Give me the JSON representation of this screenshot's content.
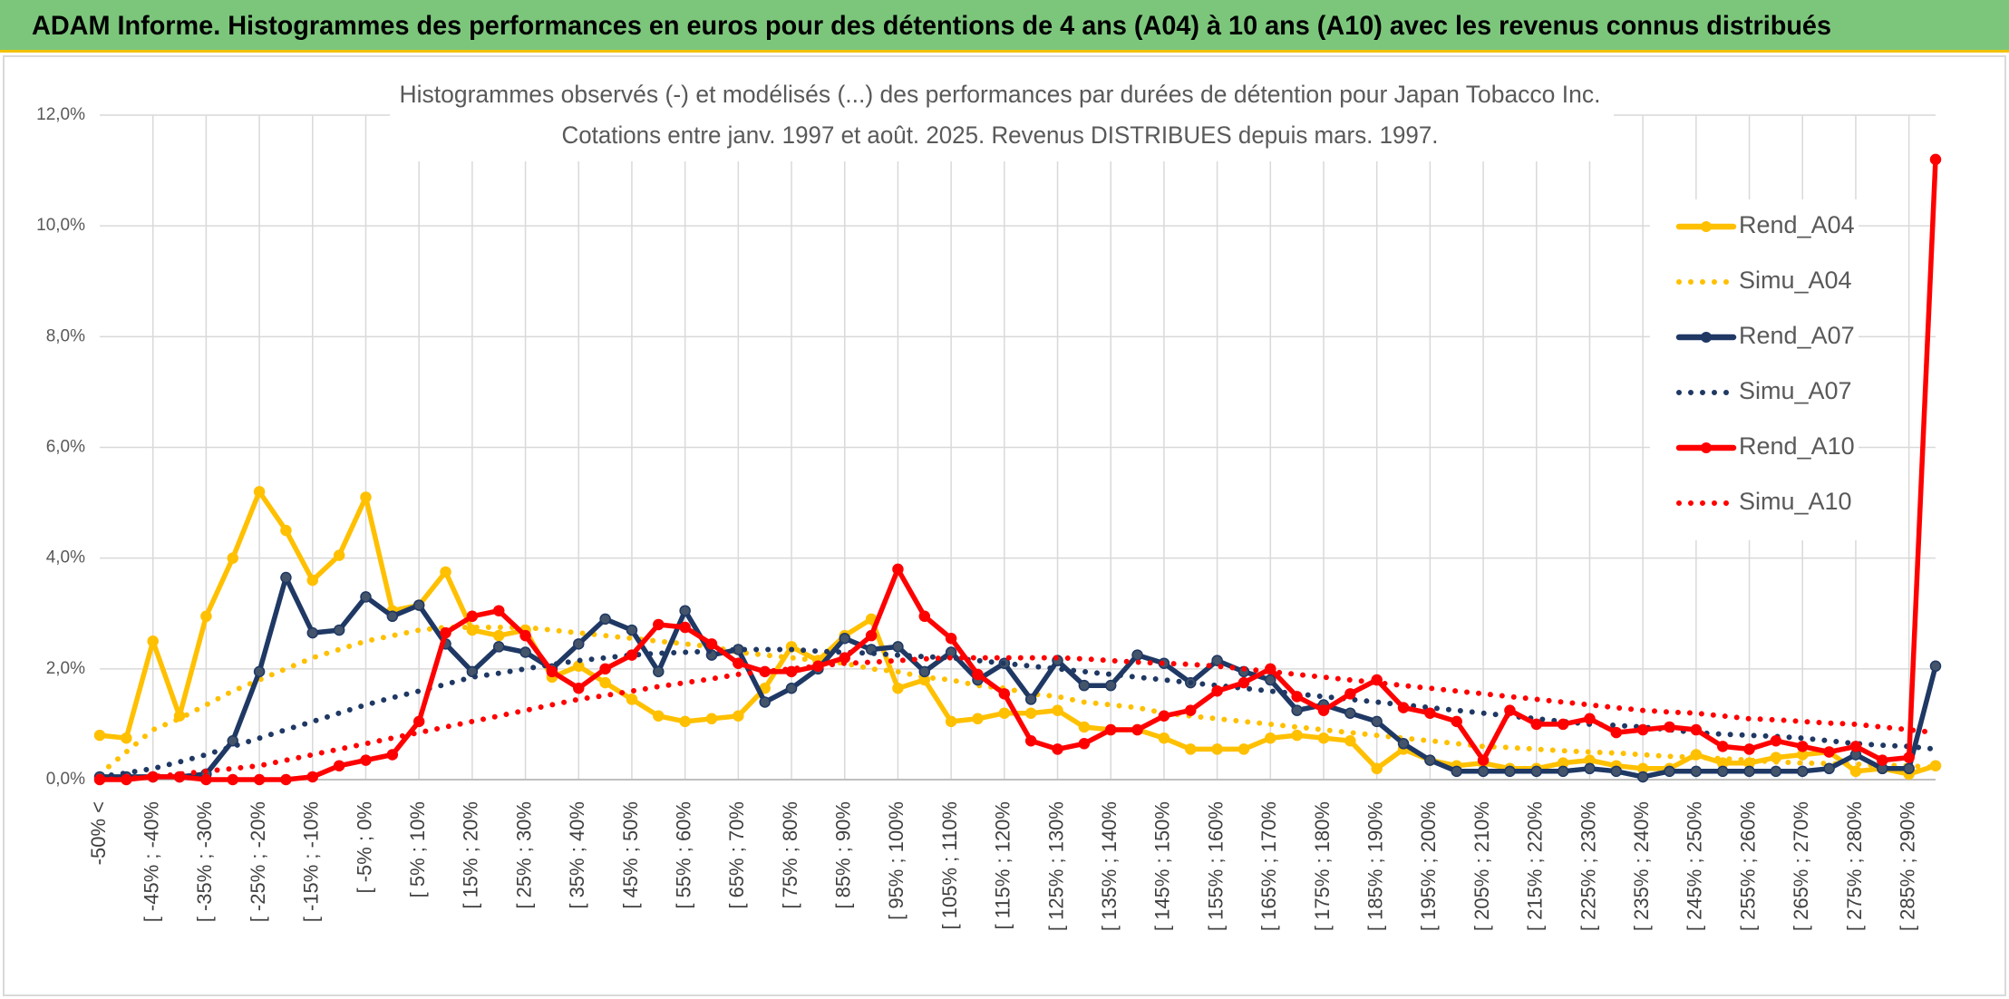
{
  "header": {
    "title": "ADAM Informe. Histogrammes des performances en euros pour des détentions de 4 ans (A04) à 10 ans (A10) avec les revenus connus distribués"
  },
  "chart_data": {
    "type": "line",
    "title": "Histogrammes observés (-) et modélisés (...) des performances par durées de détention pour Japan Tobacco Inc.",
    "subtitle": "Cotations entre janv. 1997 et août. 2025. Revenus DISTRIBUES depuis mars. 1997.",
    "categories": [
      "-50% <",
      null,
      "[ -45% ; -40%",
      null,
      "[ -35% ; -30%",
      null,
      "[ -25% ; -20%",
      null,
      "[ -15% ; -10%",
      null,
      "[ -5% ; 0%",
      null,
      "[ 5% ; 10%",
      null,
      "[ 15% ; 20%",
      null,
      "[ 25% ; 30%",
      null,
      "[ 35% ; 40%",
      null,
      "[ 45% ; 50%",
      null,
      "[ 55% ; 60%",
      null,
      "[ 65% ; 70%",
      null,
      "[ 75% ; 80%",
      null,
      "[ 85% ; 90%",
      null,
      "[ 95% ; 100%",
      null,
      "[ 105% ; 110%",
      null,
      "[ 115% ; 120%",
      null,
      "[ 125% ; 130%",
      null,
      "[ 135% ; 140%",
      null,
      "[ 145% ; 150%",
      null,
      "[ 155% ; 160%",
      null,
      "[ 165% ; 170%",
      null,
      "[ 175% ; 180%",
      null,
      "[ 185% ; 190%",
      null,
      "[ 195% ; 200%",
      null,
      "[ 205% ; 210%",
      null,
      "[ 215% ; 220%",
      null,
      "[ 225% ; 230%",
      null,
      "[ 235% ; 240%",
      null,
      "[ 245% ; 250%",
      null,
      "[ 255% ; 260%",
      null,
      "[ 265% ; 270%",
      null,
      "[ 275% ; 280%",
      null,
      "[ 285% ; 290%",
      null
    ],
    "series": [
      {
        "name": "Rend_A04",
        "color": "#ffc000",
        "line_style": "solid",
        "marker": true,
        "values": [
          0.8,
          0.75,
          2.5,
          1.15,
          2.95,
          4.0,
          5.2,
          4.5,
          3.6,
          4.05,
          5.1,
          3.05,
          3.15,
          3.75,
          2.7,
          2.6,
          2.7,
          1.85,
          2.05,
          1.75,
          1.45,
          1.15,
          1.05,
          1.1,
          1.15,
          1.65,
          2.4,
          2.15,
          2.6,
          2.9,
          1.65,
          1.8,
          1.05,
          1.1,
          1.2,
          1.2,
          1.25,
          0.95,
          0.9,
          0.9,
          0.75,
          0.55,
          0.55,
          0.55,
          0.75,
          0.8,
          0.75,
          0.7,
          0.2,
          0.55,
          0.35,
          0.25,
          0.3,
          0.2,
          0.2,
          0.3,
          0.35,
          0.25,
          0.2,
          0.2,
          0.45,
          0.3,
          0.3,
          0.4,
          0.45,
          0.5,
          0.15,
          0.2,
          0.1,
          0.25
        ]
      },
      {
        "name": "Simu_A04",
        "color": "#ffc000",
        "line_style": "dotted",
        "marker": false,
        "values": [
          0.1,
          0.5,
          0.9,
          1.1,
          1.35,
          1.6,
          1.8,
          2.0,
          2.2,
          2.35,
          2.5,
          2.6,
          2.7,
          2.75,
          2.75,
          2.75,
          2.75,
          2.7,
          2.65,
          2.6,
          2.55,
          2.5,
          2.45,
          2.4,
          2.3,
          2.25,
          2.2,
          2.15,
          2.1,
          2.0,
          1.95,
          1.85,
          1.8,
          1.7,
          1.65,
          1.55,
          1.5,
          1.4,
          1.35,
          1.3,
          1.2,
          1.15,
          1.1,
          1.05,
          1.0,
          0.95,
          0.9,
          0.85,
          0.8,
          0.75,
          0.7,
          0.65,
          0.6,
          0.58,
          0.55,
          0.52,
          0.5,
          0.48,
          0.45,
          0.42,
          0.4,
          0.38,
          0.35,
          0.32,
          0.3,
          0.29,
          0.28,
          0.26,
          0.25,
          0.22
        ]
      },
      {
        "name": "Rend_A07",
        "color": "#1f3864",
        "line_style": "solid",
        "marker": true,
        "values": [
          0.05,
          0.05,
          0.05,
          0.05,
          0.1,
          0.7,
          1.95,
          3.65,
          2.65,
          2.7,
          3.3,
          2.95,
          3.15,
          2.45,
          1.95,
          2.4,
          2.3,
          2.0,
          2.45,
          2.9,
          2.7,
          1.95,
          3.05,
          2.25,
          2.35,
          1.4,
          1.65,
          2.0,
          2.55,
          2.35,
          2.4,
          1.95,
          2.3,
          1.8,
          2.1,
          1.45,
          2.15,
          1.7,
          1.7,
          2.25,
          2.1,
          1.75,
          2.15,
          1.95,
          1.8,
          1.25,
          1.35,
          1.2,
          1.05,
          0.65,
          0.35,
          0.15,
          0.15,
          0.15,
          0.15,
          0.15,
          0.2,
          0.15,
          0.05,
          0.15,
          0.15,
          0.15,
          0.15,
          0.15,
          0.15,
          0.2,
          0.45,
          0.2,
          0.2,
          2.05
        ]
      },
      {
        "name": "Simu_A07",
        "color": "#1f3864",
        "line_style": "dotted",
        "marker": false,
        "values": [
          0.05,
          0.12,
          0.2,
          0.32,
          0.45,
          0.6,
          0.75,
          0.9,
          1.05,
          1.2,
          1.35,
          1.48,
          1.6,
          1.72,
          1.85,
          1.92,
          2.0,
          2.08,
          2.15,
          2.2,
          2.25,
          2.28,
          2.3,
          2.32,
          2.35,
          2.35,
          2.35,
          2.32,
          2.3,
          2.28,
          2.25,
          2.22,
          2.2,
          2.15,
          2.1,
          2.05,
          2.0,
          1.95,
          1.9,
          1.85,
          1.8,
          1.75,
          1.7,
          1.65,
          1.6,
          1.55,
          1.5,
          1.45,
          1.4,
          1.35,
          1.3,
          1.25,
          1.2,
          1.15,
          1.1,
          1.05,
          1.0,
          0.98,
          0.95,
          0.9,
          0.85,
          0.82,
          0.8,
          0.78,
          0.75,
          0.7,
          0.65,
          0.62,
          0.6,
          0.55
        ]
      },
      {
        "name": "Rend_A10",
        "color": "#ff0000",
        "line_style": "solid",
        "marker": true,
        "values": [
          0.0,
          0.0,
          0.05,
          0.05,
          0.0,
          0.0,
          0.0,
          0.0,
          0.05,
          0.25,
          0.35,
          0.45,
          1.05,
          2.65,
          2.95,
          3.05,
          2.6,
          1.95,
          1.65,
          2.0,
          2.25,
          2.8,
          2.75,
          2.45,
          2.1,
          1.95,
          1.95,
          2.05,
          2.2,
          2.6,
          3.8,
          2.95,
          2.55,
          1.9,
          1.55,
          0.7,
          0.55,
          0.65,
          0.9,
          0.9,
          1.15,
          1.25,
          1.6,
          1.75,
          2.0,
          1.5,
          1.25,
          1.55,
          1.8,
          1.3,
          1.2,
          1.05,
          0.35,
          1.25,
          1.0,
          1.0,
          1.1,
          0.85,
          0.9,
          0.95,
          0.9,
          0.6,
          0.55,
          0.7,
          0.6,
          0.5,
          0.6,
          0.35,
          0.4,
          11.2
        ]
      },
      {
        "name": "Simu_A10",
        "color": "#ff0000",
        "line_style": "dotted",
        "marker": false,
        "values": [
          0.0,
          0.02,
          0.05,
          0.1,
          0.15,
          0.2,
          0.25,
          0.35,
          0.45,
          0.55,
          0.65,
          0.75,
          0.85,
          0.95,
          1.05,
          1.15,
          1.25,
          1.35,
          1.45,
          1.52,
          1.6,
          1.68,
          1.75,
          1.82,
          1.9,
          1.95,
          2.0,
          2.05,
          2.1,
          2.12,
          2.15,
          2.18,
          2.2,
          2.2,
          2.2,
          2.2,
          2.2,
          2.18,
          2.15,
          2.12,
          2.1,
          2.08,
          2.05,
          2.0,
          1.95,
          1.9,
          1.85,
          1.8,
          1.75,
          1.7,
          1.65,
          1.6,
          1.55,
          1.5,
          1.45,
          1.4,
          1.35,
          1.3,
          1.25,
          1.22,
          1.2,
          1.15,
          1.1,
          1.08,
          1.05,
          1.02,
          1.0,
          0.95,
          0.9,
          0.85
        ]
      }
    ],
    "ylim": [
      0,
      12
    ],
    "yticks": [
      {
        "value": 0,
        "label": "0,0%"
      },
      {
        "value": 2,
        "label": "2,0%"
      },
      {
        "value": 4,
        "label": "4,0%"
      },
      {
        "value": 6,
        "label": "6,0%"
      },
      {
        "value": 8,
        "label": "8,0%"
      },
      {
        "value": 10,
        "label": "10,0%"
      },
      {
        "value": 12,
        "label": "12,0%"
      }
    ],
    "grid": true,
    "legend": "right"
  }
}
